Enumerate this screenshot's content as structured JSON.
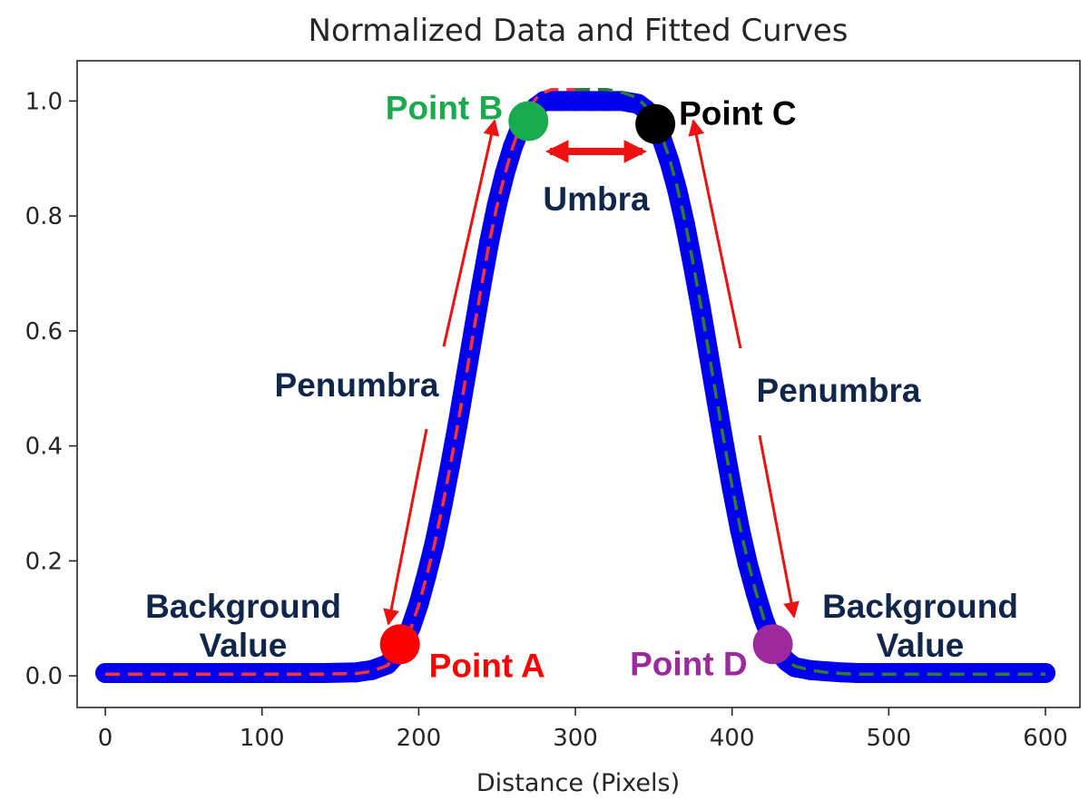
{
  "chart_data": {
    "type": "line",
    "title": "Normalized Data and Fitted Curves",
    "xlabel": "Distance (Pixels)",
    "ylabel": "",
    "xlim": [
      -18,
      622
    ],
    "ylim": [
      -0.055,
      1.07
    ],
    "xticks": [
      0,
      100,
      200,
      300,
      400,
      500,
      600
    ],
    "xtick_labels": [
      "0",
      "100",
      "200",
      "300",
      "400",
      "500",
      "600"
    ],
    "yticks": [
      0.0,
      0.2,
      0.4,
      0.6,
      0.8,
      1.0
    ],
    "ytick_labels": [
      "0.0",
      "0.2",
      "0.4",
      "0.6",
      "0.8",
      "1.0"
    ],
    "grid": false,
    "series": [
      {
        "style": "thick-markers",
        "color": "#0000ee",
        "x": [
          0,
          20,
          40,
          60,
          80,
          100,
          120,
          140,
          160,
          170,
          180,
          185,
          190,
          195,
          200,
          205,
          210,
          215,
          220,
          225,
          230,
          235,
          240,
          245,
          250,
          255,
          260,
          265,
          270,
          275,
          280,
          290,
          300,
          310,
          320,
          330,
          340,
          345,
          350,
          355,
          360,
          365,
          370,
          375,
          380,
          385,
          390,
          395,
          400,
          405,
          410,
          415,
          420,
          425,
          430,
          435,
          440,
          450,
          460,
          470,
          480,
          500,
          520,
          540,
          560,
          580,
          600
        ],
        "y": [
          0.005,
          0.005,
          0.005,
          0.005,
          0.005,
          0.005,
          0.005,
          0.005,
          0.006,
          0.01,
          0.02,
          0.035,
          0.055,
          0.085,
          0.125,
          0.175,
          0.23,
          0.295,
          0.365,
          0.44,
          0.52,
          0.6,
          0.68,
          0.755,
          0.82,
          0.875,
          0.92,
          0.955,
          0.975,
          0.99,
          1.0,
          1.0,
          1.0,
          1.0,
          1.0,
          1.0,
          0.995,
          0.985,
          0.965,
          0.935,
          0.895,
          0.845,
          0.785,
          0.715,
          0.64,
          0.56,
          0.48,
          0.4,
          0.325,
          0.255,
          0.195,
          0.145,
          0.1,
          0.065,
          0.04,
          0.025,
          0.015,
          0.01,
          0.008,
          0.006,
          0.005,
          0.005,
          0.005,
          0.005,
          0.005,
          0.005,
          0.005
        ]
      },
      {
        "style": "dashed",
        "color": "#ff3333",
        "x": [
          0,
          20,
          40,
          60,
          80,
          100,
          120,
          140,
          160,
          170,
          180,
          185,
          190,
          195,
          200,
          205,
          210,
          215,
          220,
          225,
          230,
          235,
          240,
          245,
          250,
          255,
          260,
          265,
          270,
          275,
          280,
          285,
          290,
          300
        ],
        "y": [
          0.003,
          0.003,
          0.003,
          0.003,
          0.003,
          0.003,
          0.003,
          0.003,
          0.004,
          0.008,
          0.018,
          0.033,
          0.053,
          0.083,
          0.123,
          0.173,
          0.228,
          0.293,
          0.363,
          0.438,
          0.518,
          0.598,
          0.678,
          0.753,
          0.818,
          0.873,
          0.92,
          0.958,
          0.985,
          1.005,
          1.015,
          1.02,
          1.02,
          1.02
        ]
      },
      {
        "style": "dashed",
        "color": "#2e7d32",
        "x": [
          300,
          310,
          320,
          330,
          340,
          345,
          350,
          355,
          360,
          365,
          370,
          375,
          380,
          385,
          390,
          395,
          400,
          405,
          410,
          415,
          420,
          425,
          430,
          435,
          440,
          450,
          460,
          470,
          480,
          500,
          520,
          540,
          560,
          580,
          600
        ],
        "y": [
          1.02,
          1.02,
          1.02,
          1.015,
          1.005,
          0.99,
          0.97,
          0.94,
          0.9,
          0.85,
          0.79,
          0.72,
          0.645,
          0.565,
          0.485,
          0.405,
          0.33,
          0.26,
          0.2,
          0.148,
          0.102,
          0.067,
          0.042,
          0.027,
          0.017,
          0.01,
          0.006,
          0.004,
          0.003,
          0.003,
          0.003,
          0.003,
          0.003,
          0.003,
          0.003
        ]
      }
    ],
    "points": [
      {
        "x": 188,
        "y": 0.055,
        "color": "#ff0000",
        "label": "Point A",
        "label_color": "#ff0000",
        "label_pos": "right-below"
      },
      {
        "x": 270,
        "y": 0.965,
        "color": "#1aab4e",
        "label": "Point B",
        "label_color": "#1aab4e",
        "label_pos": "left"
      },
      {
        "x": 351,
        "y": 0.96,
        "color": "#000000",
        "label": "Point C",
        "label_color": "#000000",
        "label_pos": "right-above"
      },
      {
        "x": 426,
        "y": 0.055,
        "color": "#9c2a9c",
        "label": "Point D",
        "label_color": "#9c2a9c",
        "label_pos": "left-below"
      }
    ],
    "annotations": {
      "umbra": "Umbra",
      "penumbra_left": "Penumbra",
      "penumbra_right": "Penumbra",
      "background_left": [
        "Background",
        "Value"
      ],
      "background_right": [
        "Background",
        "Value"
      ],
      "text_color": "#10264b",
      "arrow_color": "#ee1111"
    }
  }
}
